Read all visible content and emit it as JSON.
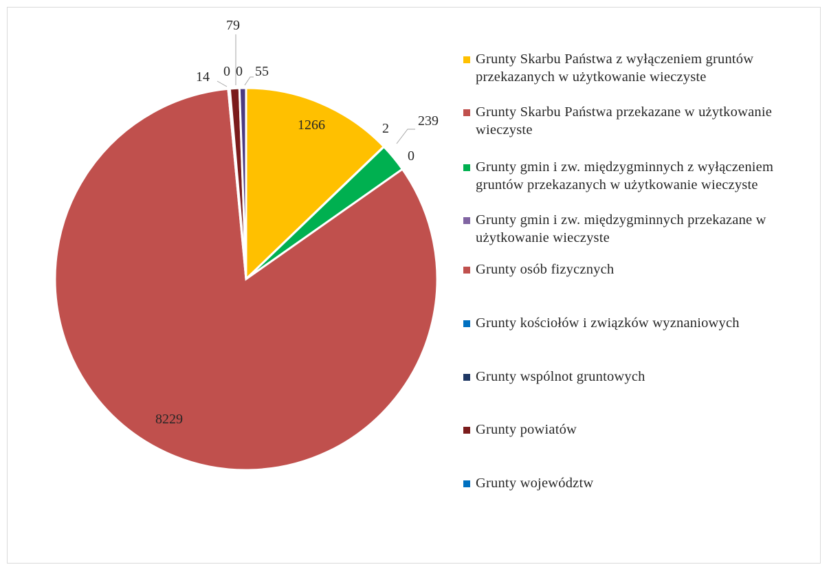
{
  "chart_data": {
    "type": "pie",
    "slices": [
      {
        "label": "Grunty Skarbu Państwa z wyłączeniem gruntów przekazanych w użytkowanie wieczyste",
        "value": 1266,
        "color": "#ffc000"
      },
      {
        "label": "Grunty Skarbu Państwa przekazane w użytkowanie wieczyste",
        "value": 2,
        "color": "#c0504d"
      },
      {
        "label": "Grunty gmin i zw. międzygminnych z wyłączeniem gruntów przekazanych w użytkowanie wieczyste",
        "value": 239,
        "color": "#00b050"
      },
      {
        "label": "Grunty gmin i zw. międzygminnych przekazane w użytkowanie wieczyste",
        "value": 0,
        "color": "#8064a2"
      },
      {
        "label": "Grunty osób fizycznych",
        "value": 8229,
        "color": "#c0504d"
      },
      {
        "label": "Grunty kościołów i związków wyznaniowych",
        "value": 14,
        "color": "#0070c0"
      },
      {
        "label": "Grunty wspólnot gruntowych",
        "value": 0,
        "color": "#1f3864"
      },
      {
        "label": "Grunty powiatów",
        "value": 79,
        "color": "#7b1c1c"
      },
      {
        "label": "Grunty województw",
        "value": 0,
        "color": "#0070c0"
      },
      {
        "label": "",
        "value": 55,
        "color": "#4b3a80"
      }
    ],
    "data_labels": [
      "1266",
      "2",
      "239",
      "0",
      "8229",
      "14",
      "0",
      "79",
      "0",
      "55"
    ],
    "legend_position": "right"
  },
  "legend": [
    {
      "text": "Grunty Skarbu Państwa z wyłączeniem gruntów przekazanych w użytkowanie wieczyste",
      "color": "#ffc000"
    },
    {
      "text": "Grunty Skarbu Państwa przekazane w użytkowanie wieczyste",
      "color": "#c0504d"
    },
    {
      "text": "Grunty gmin i zw. międzygminnych z wyłączeniem gruntów przekazanych w użytkowanie wieczyste",
      "color": "#00b050"
    },
    {
      "text": "Grunty gmin i zw. międzygminnych przekazane w użytkowanie wieczyste",
      "color": "#8064a2"
    },
    {
      "text": "Grunty osób fizycznych",
      "color": "#c0504d"
    },
    {
      "text": "Grunty kościołów i związków wyznaniowych",
      "color": "#0070c0"
    },
    {
      "text": "Grunty wspólnot gruntowych",
      "color": "#1f3864"
    },
    {
      "text": "Grunty powiatów",
      "color": "#7b1c1c"
    },
    {
      "text": "Grunty województw",
      "color": "#0070c0"
    }
  ]
}
